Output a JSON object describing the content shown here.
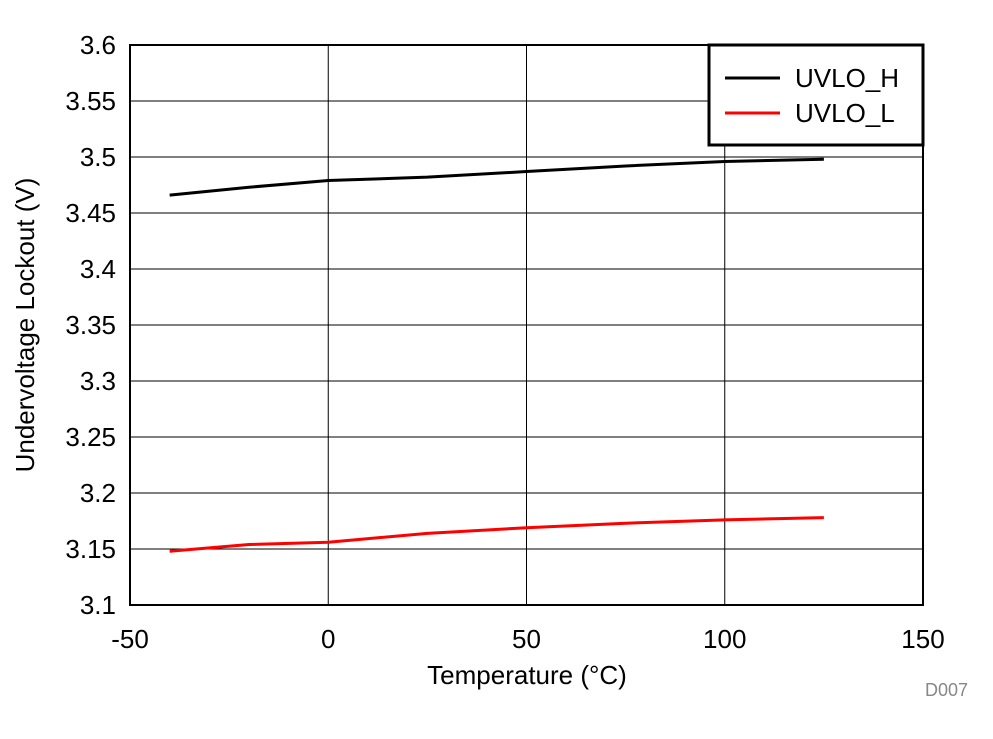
{
  "chart_data": {
    "type": "line",
    "title": "",
    "xlabel": "Temperature (°C)",
    "ylabel": "Undervoltage Lockout (V)",
    "xlim": [
      -50,
      150
    ],
    "ylim": [
      3.1,
      3.6
    ],
    "xticks": [
      -50,
      0,
      50,
      100,
      150
    ],
    "xtick_labels": [
      "-50",
      "0",
      "50",
      "100",
      "150"
    ],
    "yticks": [
      3.1,
      3.15,
      3.2,
      3.25,
      3.3,
      3.35,
      3.4,
      3.45,
      3.5,
      3.55,
      3.6
    ],
    "ytick_labels": [
      "3.1",
      "3.15",
      "3.2",
      "3.25",
      "3.3",
      "3.35",
      "3.4",
      "3.45",
      "3.5",
      "3.55",
      "3.6"
    ],
    "grid": true,
    "legend_position": "top-right",
    "series": [
      {
        "name": "UVLO_H",
        "color": "#000000",
        "x": [
          -40,
          -20,
          0,
          25,
          50,
          75,
          100,
          125
        ],
        "y": [
          3.466,
          3.473,
          3.479,
          3.482,
          3.487,
          3.492,
          3.496,
          3.498
        ]
      },
      {
        "name": "UVLO_L",
        "color": "#ff0000",
        "x": [
          -40,
          -20,
          0,
          25,
          50,
          75,
          100,
          125
        ],
        "y": [
          3.148,
          3.154,
          3.156,
          3.164,
          3.169,
          3.173,
          3.176,
          3.178
        ]
      }
    ],
    "annotation": "D007"
  }
}
